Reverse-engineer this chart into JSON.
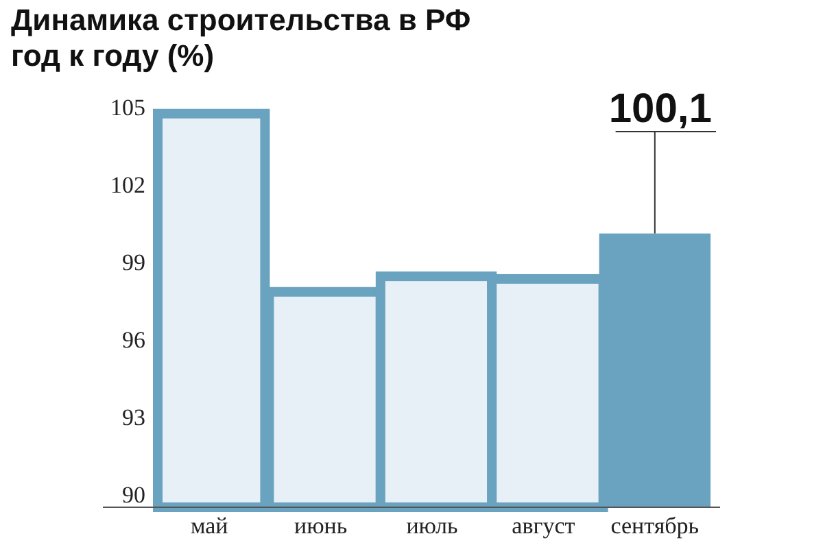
{
  "chart_data": {
    "type": "bar",
    "title": "Динамика строительства в РФ\nгод к году (%)",
    "categories": [
      "май",
      "июнь",
      "июль",
      "август",
      "сентябрь"
    ],
    "values": [
      104.9,
      98.0,
      98.6,
      98.5,
      100.1
    ],
    "colors": [
      "#e8f0f7",
      "#e8f0f7",
      "#e8f0f7",
      "#e8f0f7",
      "#6aa3bf"
    ],
    "value_labels": [
      null,
      null,
      null,
      null,
      "100,1"
    ],
    "ylim": [
      89.5,
      105
    ],
    "yticks": [
      90,
      93,
      96,
      99,
      102,
      105
    ],
    "grid": false
  }
}
